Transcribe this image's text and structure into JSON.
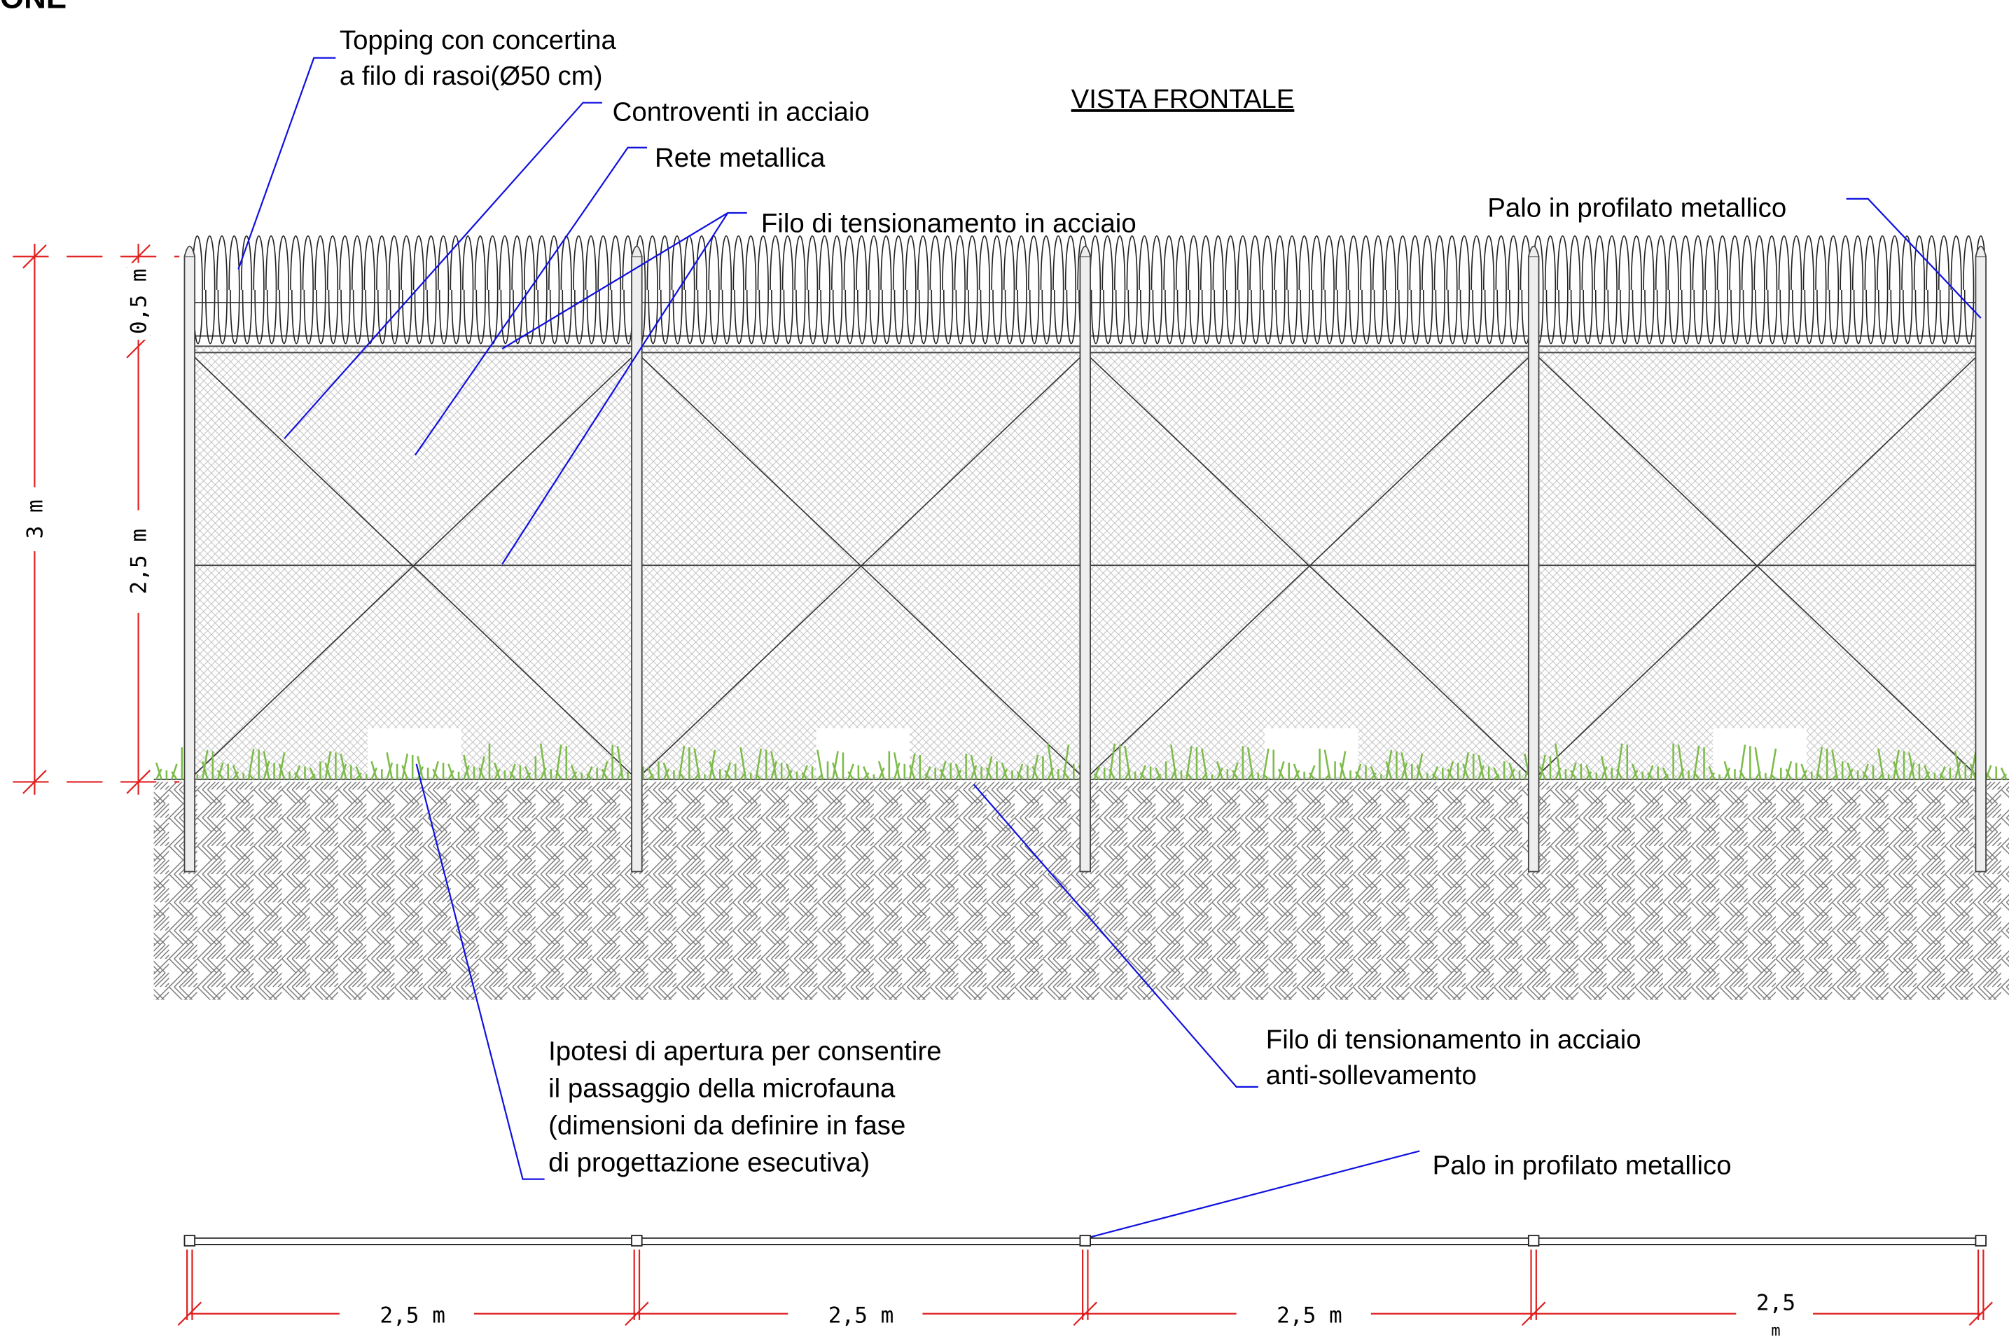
{
  "title_fragment": "ONE",
  "view_title": "VISTA FRONTALE",
  "labels": {
    "topping": [
      "Topping con concertina",
      "a filo di rasoi(Ø50 cm)"
    ],
    "controventi": "Controventi in acciaio",
    "rete": "Rete metallica",
    "filo": "Filo di tensionamento in acciaio",
    "palo_top": "Palo in profilato metallico",
    "apertura": [
      "Ipotesi di apertura per consentire",
      "il passaggio della microfauna",
      "(dimensioni da definire in fase",
      "di progettazione esecutiva)"
    ],
    "filo_anti": [
      "Filo di tensionamento in acciaio",
      "anti-sollevamento"
    ],
    "palo_plan": "Palo in profilato metallico"
  },
  "dimensions": {
    "vertical": {
      "top": "0,5 m",
      "fence": "2,5 m",
      "total": "3 m"
    },
    "bottom": [
      "2,5 m",
      "2,5 m",
      "2,5 m"
    ],
    "bottom_last": [
      "2,5",
      "m"
    ]
  }
}
